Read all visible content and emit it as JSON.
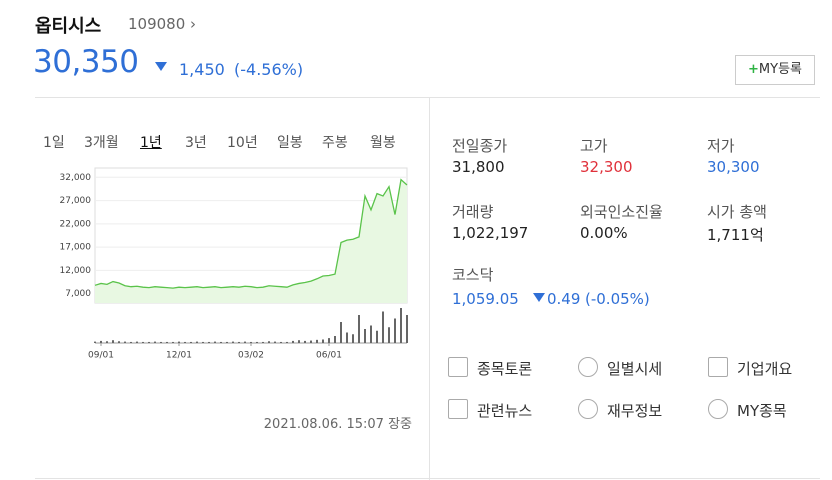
{
  "header": {
    "name": "옵티시스",
    "code": "109080",
    "price": "30,350",
    "change": "1,450",
    "change_pct": "(-4.56%)",
    "button": "MY등록"
  },
  "tabs": {
    "items": [
      "1일",
      "3개월",
      "1년",
      "3년",
      "10년",
      "일봉",
      "주봉",
      "월봉"
    ],
    "selected": 2
  },
  "chart": {
    "type": "line",
    "color": "#5ac34a",
    "fill": "#e8f8e2",
    "categories": [
      null,
      "09/01",
      null,
      null,
      null,
      null,
      null,
      null,
      null,
      null,
      null,
      null,
      null,
      null,
      "12/01",
      null,
      null,
      null,
      null,
      null,
      null,
      null,
      null,
      null,
      null,
      null,
      "03/02",
      null,
      null,
      null,
      null,
      null,
      null,
      null,
      null,
      null,
      null,
      null,
      null,
      "06/01",
      null,
      null,
      null,
      null,
      null,
      null,
      null,
      null,
      null,
      null,
      null,
      null,
      null
    ],
    "values": [
      8800,
      9200,
      9000,
      9600,
      9300,
      8700,
      8500,
      8600,
      8400,
      8300,
      8500,
      8400,
      8300,
      8200,
      8400,
      8300,
      8400,
      8500,
      8300,
      8400,
      8500,
      8300,
      8400,
      8500,
      8400,
      8600,
      8500,
      8300,
      8400,
      8700,
      8600,
      8500,
      8400,
      8900,
      9200,
      9400,
      9700,
      10200,
      10800,
      10900,
      11200,
      18000,
      18500,
      18700,
      19200,
      28000,
      25000,
      28500,
      28000,
      30000,
      24000,
      31500,
      30350
    ],
    "ylim": [
      5000,
      34000
    ],
    "yticks": [
      {
        "value": 7000,
        "label": "7,000"
      },
      {
        "value": 12000,
        "label": "12,000"
      },
      {
        "value": 17000,
        "label": "17,000"
      },
      {
        "value": 22000,
        "label": "22,000"
      },
      {
        "value": 27000,
        "label": "27,000"
      },
      {
        "value": 32000,
        "label": "32,000"
      }
    ],
    "grid": true,
    "volume": {
      "color": "#666666",
      "ylim": [
        0,
        100
      ],
      "values": [
        4,
        6,
        5,
        8,
        5,
        4,
        3,
        4,
        3,
        3,
        4,
        3,
        3,
        3,
        4,
        3,
        3,
        4,
        3,
        3,
        4,
        3,
        3,
        4,
        3,
        4,
        3,
        3,
        3,
        5,
        4,
        3,
        3,
        6,
        8,
        6,
        7,
        9,
        10,
        14,
        20,
        60,
        30,
        25,
        80,
        40,
        50,
        35,
        90,
        45,
        70,
        100,
        80
      ]
    }
  },
  "quote": {
    "items": [
      {
        "label": "전일종가",
        "value": "31,800",
        "tone": "normal"
      },
      {
        "label": "고가",
        "value": "32,300",
        "tone": "red"
      },
      {
        "label": "저가",
        "value": "30,300",
        "tone": "blue"
      },
      {
        "label": "거래량",
        "value": "1,022,197",
        "tone": "normal"
      },
      {
        "label": "외국인소진율",
        "value": "0.00%",
        "tone": "normal"
      },
      {
        "label": "시가 총액",
        "value": "1,711억",
        "tone": "normal"
      }
    ],
    "index": {
      "label": "코스닥",
      "value": "1,059.05",
      "change": "0.49",
      "change_pct": "(-0.05%)"
    }
  },
  "links": [
    "종목토론",
    "일별시세",
    "기업개요",
    "관련뉴스",
    "재무정보",
    "MY종목"
  ],
  "timestamp": "2021.08.06. 15:07 장중"
}
